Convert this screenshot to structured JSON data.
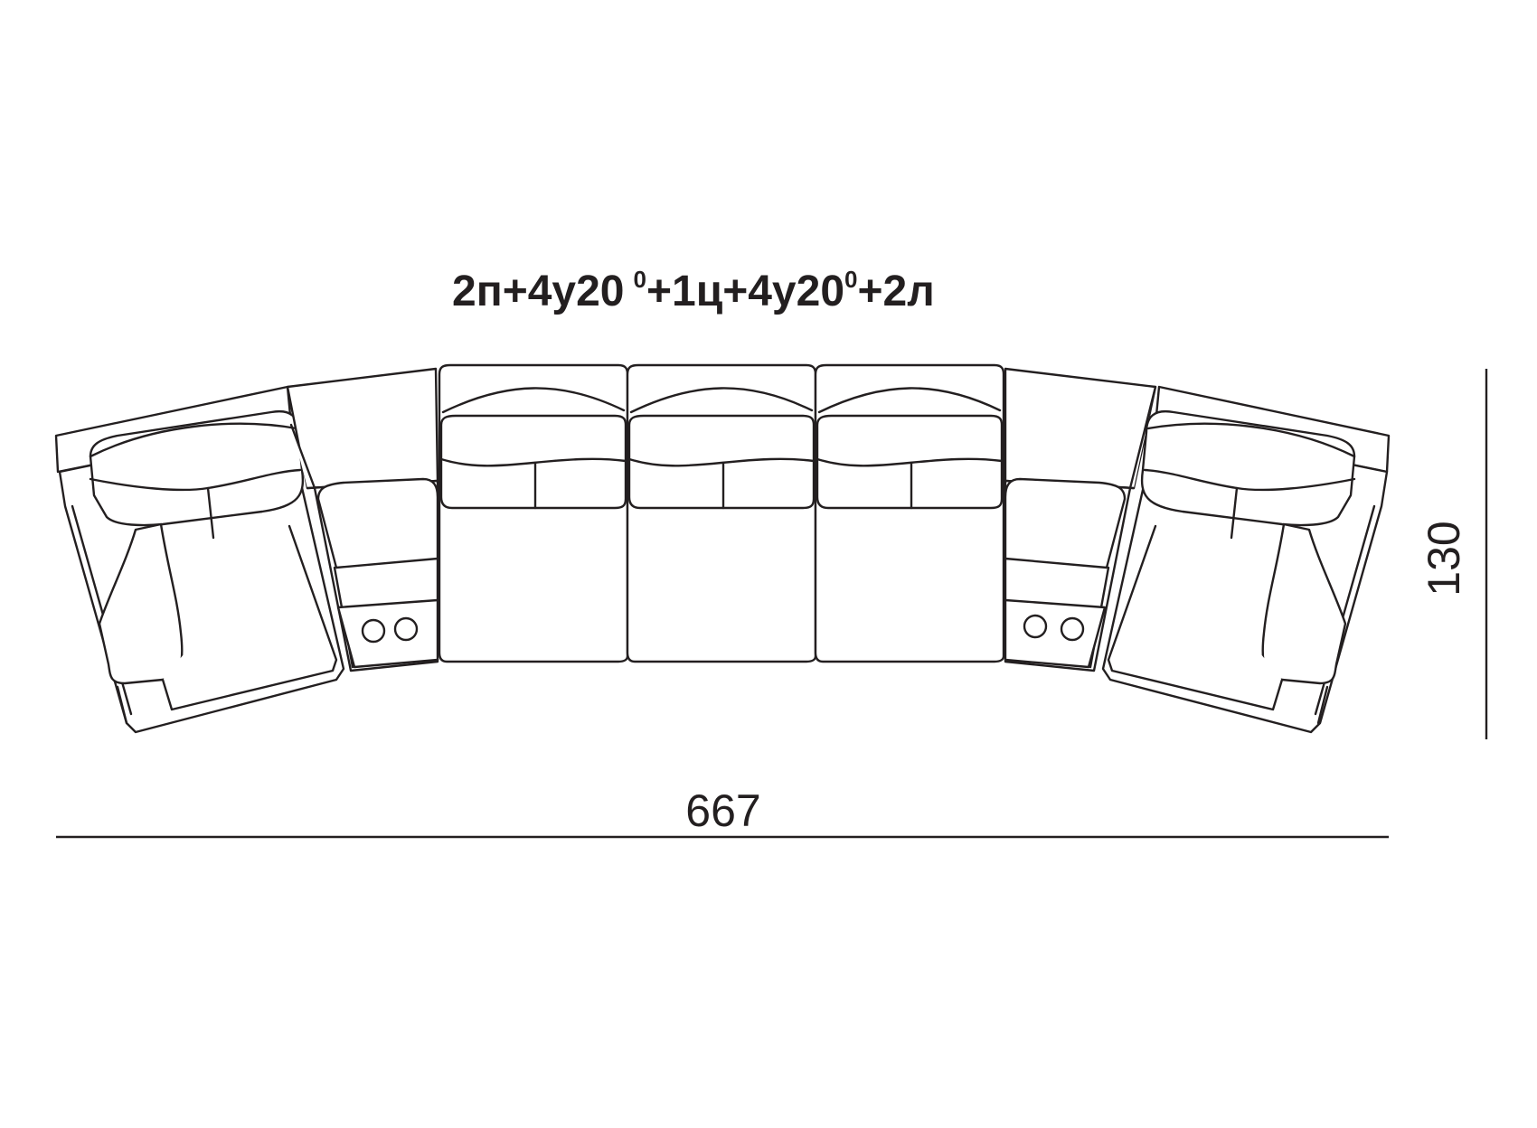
{
  "title": {
    "part1": "2п+4у20",
    "sup1": "0",
    "part2": "+1ц+4у20",
    "sup2": "0",
    "part3": "+2л"
  },
  "dimensions": {
    "width": "667",
    "depth": "130"
  },
  "colors": {
    "stroke": "#231f20",
    "background": "#ffffff"
  }
}
